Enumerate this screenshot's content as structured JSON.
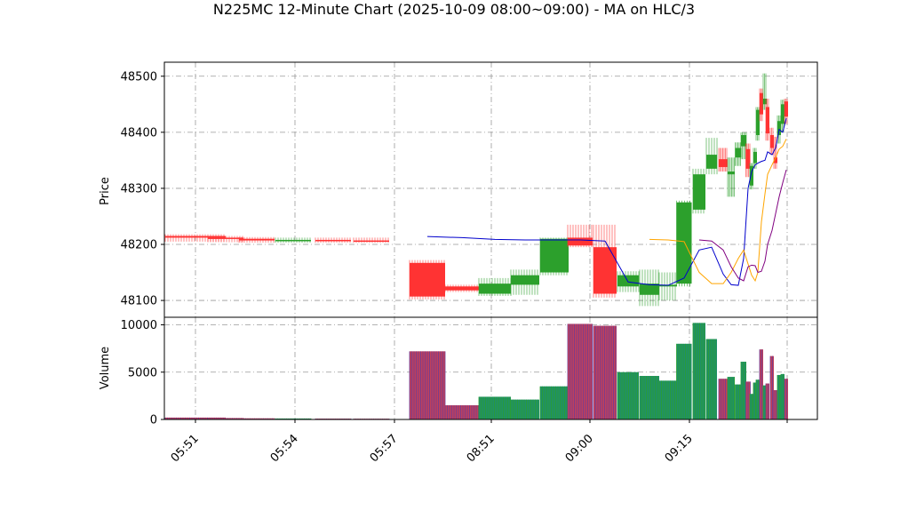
{
  "chart_data": {
    "type": "candlestick",
    "title": "N225MC 12-Minute Chart (2025-10-09 08:00~09:00) - MA on HLC/3",
    "price_panel": {
      "ylabel": "Price",
      "ylim": [
        48070,
        48525
      ],
      "yticks": [
        48100,
        48200,
        48300,
        48400,
        48500
      ],
      "grid": true
    },
    "volume_panel": {
      "ylabel": "Volume",
      "ylim": [
        0,
        10800
      ],
      "yticks": [
        0,
        5000,
        10000
      ],
      "grid": true
    },
    "x_ticks": [
      "05:51",
      "05:54",
      "05:57",
      "08:51",
      "09:00",
      "09:15"
    ],
    "colors": {
      "up": "#2ca02c",
      "down": "#ff3333",
      "ma_short": "#0000cc",
      "ma_mid": "#ffa500",
      "ma_long": "#800080"
    },
    "candles": [
      {
        "open": 48215,
        "high": 48218,
        "low": 48205,
        "close": 48212,
        "volume": 200
      },
      {
        "open": 48212,
        "high": 48215,
        "low": 48204,
        "close": 48210,
        "volume": 150
      },
      {
        "open": 48210,
        "high": 48213,
        "low": 48203,
        "close": 48207,
        "volume": 120
      },
      {
        "open": 48207,
        "high": 48212,
        "low": 48203,
        "close": 48208,
        "volume": 100
      },
      {
        "open": 48208,
        "high": 48212,
        "low": 48203,
        "close": 48207,
        "volume": 90
      },
      {
        "open": 48207,
        "high": 48212,
        "low": 48203,
        "close": 48206,
        "volume": 80
      },
      {
        "open": 48167,
        "high": 48172,
        "low": 48102,
        "close": 48107,
        "volume": 7200
      },
      {
        "open": 48125,
        "high": 48128,
        "low": 48115,
        "close": 48118,
        "volume": 1500
      },
      {
        "open": 48112,
        "high": 48140,
        "low": 48108,
        "close": 48130,
        "volume": 2400
      },
      {
        "open": 48128,
        "high": 48155,
        "low": 48110,
        "close": 48145,
        "volume": 2100
      },
      {
        "open": 48150,
        "high": 48212,
        "low": 48145,
        "close": 48210,
        "volume": 3500
      },
      {
        "open": 48212,
        "high": 48235,
        "low": 48195,
        "close": 48198,
        "volume": 10100
      },
      {
        "open": 48195,
        "high": 48235,
        "low": 48105,
        "close": 48112,
        "volume": 9900
      },
      {
        "open": 48125,
        "high": 48152,
        "low": 48115,
        "close": 48145,
        "volume": 5000
      },
      {
        "open": 48110,
        "high": 48155,
        "low": 48090,
        "close": 48130,
        "volume": 4600
      },
      {
        "open": 48125,
        "high": 48150,
        "low": 48100,
        "close": 48128,
        "volume": 4100
      },
      {
        "open": 48130,
        "high": 48278,
        "low": 48125,
        "close": 48275,
        "volume": 8000
      },
      {
        "open": 48262,
        "high": 48335,
        "low": 48255,
        "close": 48325,
        "volume": 10200
      },
      {
        "open": 48335,
        "high": 48390,
        "low": 48325,
        "close": 48360,
        "volume": 8500
      },
      {
        "open": 48352,
        "high": 48372,
        "low": 48330,
        "close": 48338,
        "volume": 4300
      },
      {
        "open": 48325,
        "high": 48355,
        "low": 48285,
        "close": 48330,
        "volume": 4500
      },
      {
        "open": 48355,
        "high": 48382,
        "low": 48340,
        "close": 48372,
        "volume": 3700
      },
      {
        "open": 48375,
        "high": 48400,
        "low": 48352,
        "close": 48395,
        "volume": 6100
      },
      {
        "open": 48370,
        "high": 48380,
        "low": 48320,
        "close": 48335,
        "volume": 4000
      },
      {
        "open": 48305,
        "high": 48345,
        "low": 48298,
        "close": 48340,
        "volume": 2700
      },
      {
        "open": 48345,
        "high": 48372,
        "low": 48335,
        "close": 48365,
        "volume": 3900
      },
      {
        "open": 48395,
        "high": 48445,
        "low": 48385,
        "close": 48440,
        "volume": 4200
      },
      {
        "open": 48470,
        "high": 48478,
        "low": 48420,
        "close": 48432,
        "volume": 7400
      },
      {
        "open": 48450,
        "high": 48505,
        "low": 48440,
        "close": 48460,
        "volume": 3600
      },
      {
        "open": 48445,
        "high": 48460,
        "low": 48385,
        "close": 48398,
        "volume": 3800
      },
      {
        "open": 48395,
        "high": 48408,
        "low": 48360,
        "close": 48372,
        "volume": 6700
      },
      {
        "open": 48355,
        "high": 48392,
        "low": 48335,
        "close": 48345,
        "volume": 3100
      },
      {
        "open": 48395,
        "high": 48430,
        "low": 48380,
        "close": 48420,
        "volume": 4700
      },
      {
        "open": 48415,
        "high": 48458,
        "low": 48400,
        "close": 48450,
        "volume": 4800
      },
      {
        "open": 48455,
        "high": 48460,
        "low": 48415,
        "close": 48428,
        "volume": 4300
      }
    ],
    "ma_short": [
      48214,
      48212,
      48209,
      48208,
      48208,
      48208,
      48206,
      48133,
      48128,
      48127,
      48140,
      48190,
      48195,
      48147,
      48128,
      48127,
      48175,
      48300,
      48330,
      48342,
      48345,
      48348,
      48350,
      48365,
      48360,
      48372,
      48405,
      48400,
      48425
    ],
    "ma_mid": [
      48209,
      48208,
      48205,
      48150,
      48130,
      48130,
      48150,
      48175,
      48190,
      48165,
      48145,
      48135,
      48150,
      48240,
      48290,
      48325,
      48342,
      48355,
      48370,
      48375,
      48388
    ],
    "ma_long": [
      48208,
      48206,
      48190,
      48160,
      48140,
      48135,
      48160,
      48163,
      48162,
      48150,
      48152,
      48170,
      48200,
      48225,
      48255,
      48285,
      48310,
      48333
    ],
    "period_labels": [
      "05:51",
      "05:54",
      "05:57",
      "08:51",
      "09:00",
      "09:15"
    ]
  }
}
